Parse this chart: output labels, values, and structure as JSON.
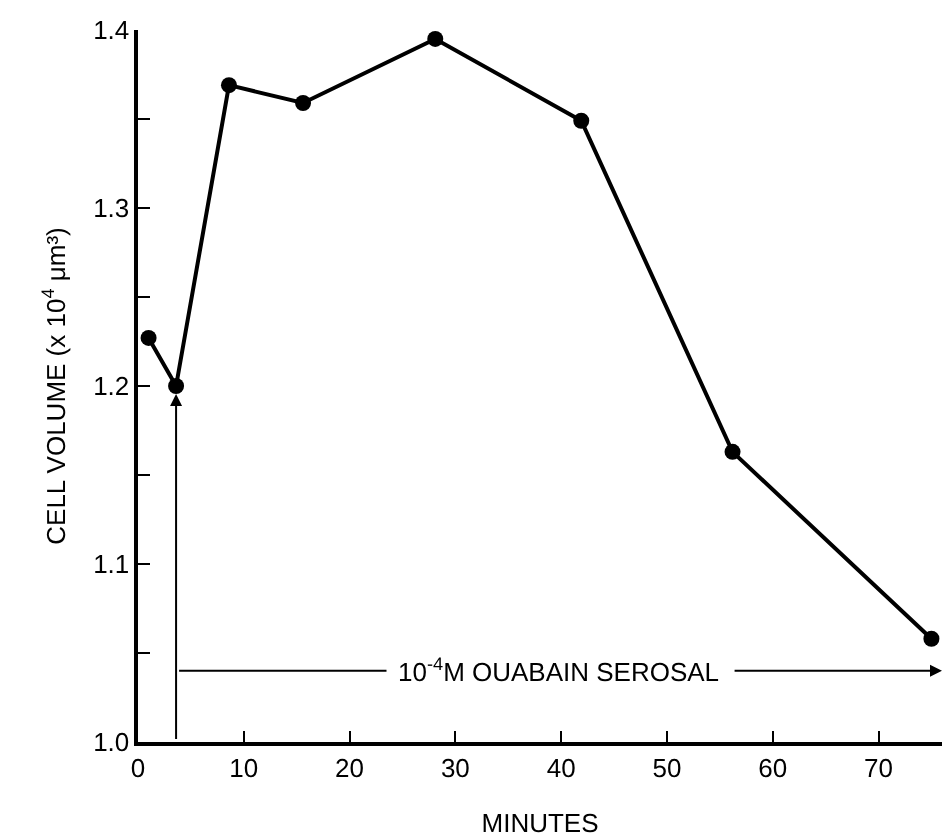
{
  "chart_data": {
    "type": "line",
    "xlabel": "MINUTES",
    "ylabel": "CELL VOLUME (x 10$^{4}$ μm³)",
    "x": [
      1.0,
      3.6,
      8.6,
      15.6,
      28.1,
      41.9,
      56.2,
      75
    ],
    "values": [
      1.227,
      1.2,
      1.369,
      1.359,
      1.395,
      1.349,
      1.163,
      1.058
    ],
    "color": "#000000",
    "marker": "circle",
    "line_style": "solid",
    "xlim": [
      0,
      76
    ],
    "xticks": [
      0,
      10,
      20,
      30,
      40,
      50,
      60,
      70
    ],
    "ylim": [
      1.0,
      1.4
    ],
    "yticks": [
      {
        "value": 1.0,
        "label": "1.0"
      },
      {
        "value": 1.05,
        "label": null
      },
      1.1,
      {
        "value": 1.15,
        "label": null
      },
      1.2,
      {
        "value": 1.25,
        "label": null
      },
      1.3,
      {
        "value": 1.35,
        "label": null
      },
      1.4
    ],
    "annotations": [
      "10$^{-4}$M OUABAIN SEROSAL"
    ]
  }
}
